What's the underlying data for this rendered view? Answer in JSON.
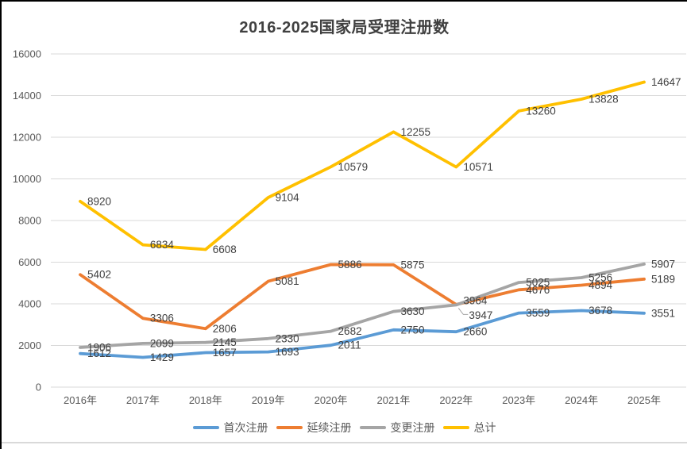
{
  "window": {
    "border_color": "#000000",
    "bottom_rule_color": "#d9d9d9"
  },
  "chart_data": {
    "type": "line",
    "title": "2016-2025国家局受理注册数",
    "categories": [
      "2016年",
      "2017年",
      "2018年",
      "2019年",
      "2020年",
      "2021年",
      "2022年",
      "2023年",
      "2024年",
      "2025年"
    ],
    "series": [
      {
        "name": "首次注册",
        "color": "#5B9BD5",
        "values": [
          1612,
          1429,
          1657,
          1693,
          2011,
          2750,
          2660,
          3559,
          3678,
          3551
        ]
      },
      {
        "name": "延续注册",
        "color": "#ED7D31",
        "values": [
          5402,
          3306,
          2806,
          5081,
          5886,
          5875,
          3964,
          4676,
          4894,
          5189
        ]
      },
      {
        "name": "变更注册",
        "color": "#A5A5A5",
        "values": [
          1906,
          2099,
          2145,
          2330,
          2682,
          3630,
          3947,
          5025,
          5256,
          5907
        ]
      },
      {
        "name": "总计",
        "color": "#FFC000",
        "values": [
          8920,
          6834,
          6608,
          9104,
          10579,
          12255,
          10571,
          13260,
          13828,
          14647
        ]
      }
    ],
    "xlabel": "",
    "ylabel": "",
    "ylim": [
      0,
      16000
    ],
    "ytick_step": 2000,
    "ytick_labels": [
      "0",
      "2000",
      "4000",
      "6000",
      "8000",
      "10000",
      "12000",
      "14000",
      "16000"
    ],
    "grid": true,
    "data_labels": true,
    "legend_position": "bottom",
    "styles": {
      "grid_color": "#D9D9D9",
      "axis_text_color": "#595959",
      "data_label_color": "#404040",
      "title_color": "#404040"
    }
  }
}
